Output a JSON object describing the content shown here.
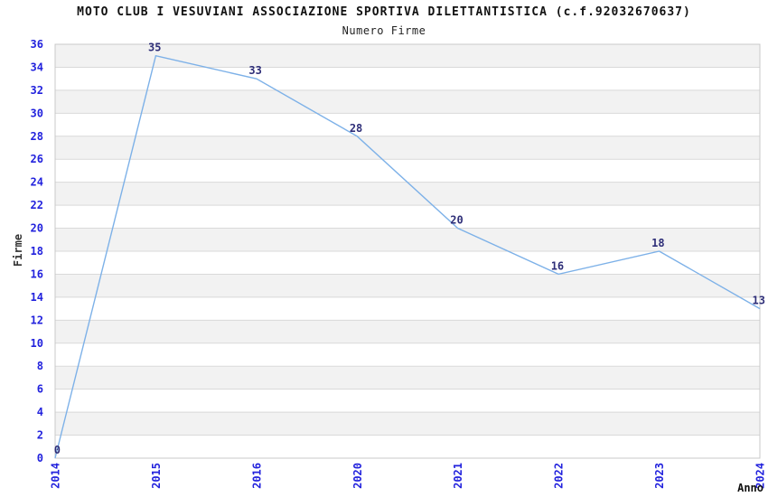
{
  "chart_data": {
    "type": "line",
    "title": "MOTO CLUB I VESUVIANI ASSOCIAZIONE SPORTIVA DILETTANTISTICA (c.f.92032670637)",
    "subtitle": "Numero Firme",
    "xlabel": "Anno",
    "ylabel": "Firme",
    "categories": [
      "2014",
      "2015",
      "2016",
      "2020",
      "2021",
      "2022",
      "2023",
      "2024"
    ],
    "values": [
      0,
      35,
      33,
      28,
      20,
      16,
      18,
      13
    ],
    "ylim": [
      0,
      36
    ],
    "y_tick_step": 2,
    "grid": true,
    "legend": "none",
    "colors": {
      "line": "#7db1e8",
      "data_label": "#2e2e78",
      "tick_label": "#2222dd",
      "axis_title": "#333333",
      "band_light": "#ffffff",
      "band_dark": "#f2f2f2",
      "gridline": "#d9d9d9",
      "plot_border": "#c9c9c9",
      "title_text": "#111111"
    }
  }
}
